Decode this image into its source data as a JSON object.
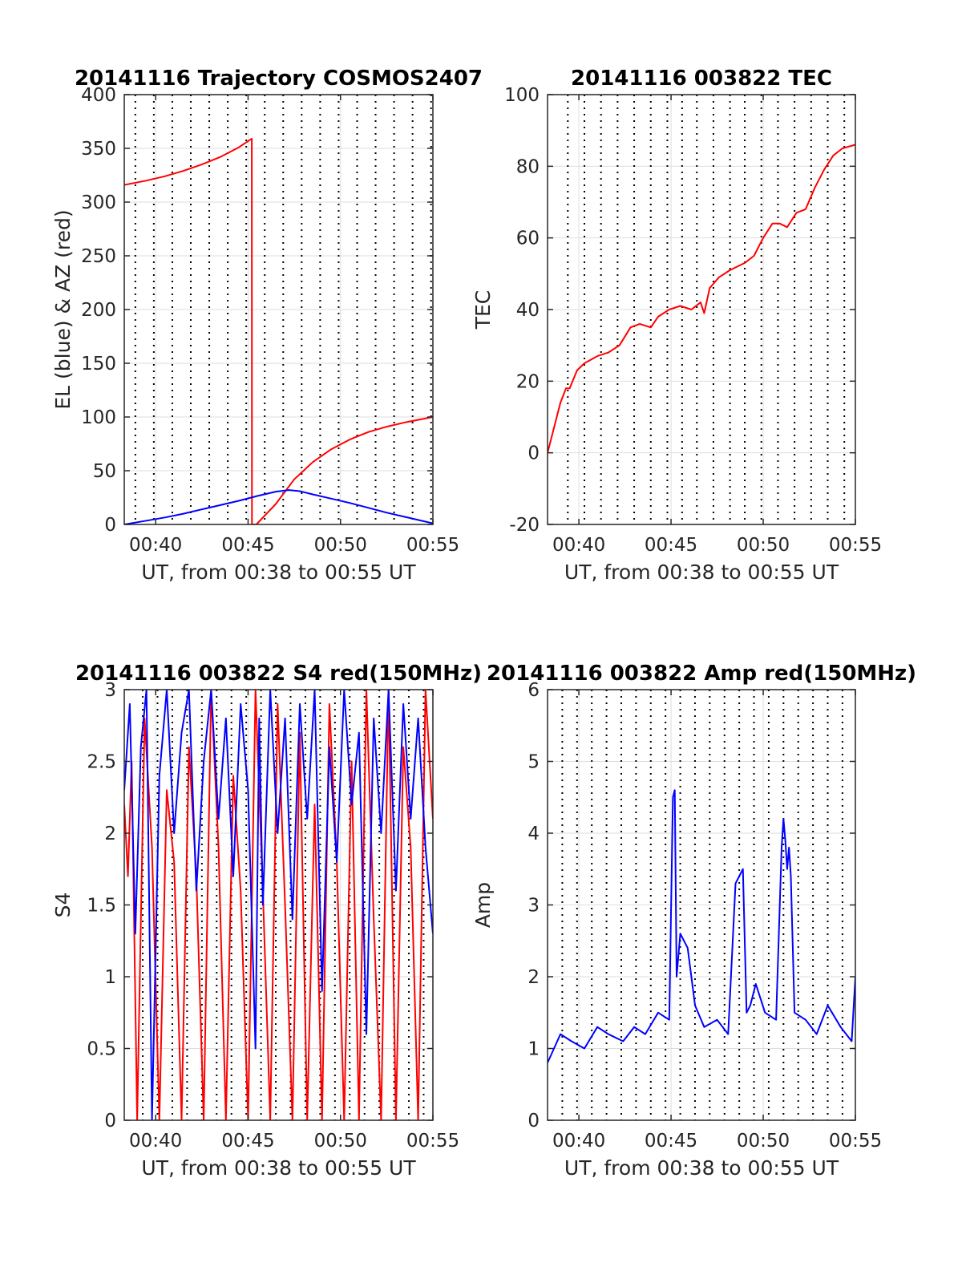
{
  "figure": {
    "background": "#ffffff"
  },
  "chart_data": [
    {
      "id": "trajectory",
      "type": "line",
      "title": "20141116 Trajectory COSMOS2407",
      "xlabel": "UT, from 00:38 to 00:55 UT",
      "ylabel": "EL (blue) & AZ (red)",
      "xlim": [
        38.3,
        55
      ],
      "ylim": [
        0,
        400
      ],
      "yticks": [
        0,
        50,
        100,
        150,
        200,
        250,
        300,
        350,
        400
      ],
      "xticks": [
        40,
        45,
        50,
        55
      ],
      "xtick_labels": [
        "00:40",
        "00:45",
        "00:50",
        "00:55"
      ],
      "dotted_x": [
        38.9,
        39.9,
        40.9,
        41.9,
        42.9,
        43.9,
        44.9,
        45.9,
        46.9,
        47.9,
        48.9,
        49.9,
        50.9,
        51.9,
        52.9,
        53.9,
        54.9
      ],
      "grid": true,
      "series": [
        {
          "name": "AZ",
          "color": "#ff0000",
          "x": [
            38.3,
            39.5,
            40.5,
            41.5,
            42.5,
            43.5,
            44.5,
            45.2,
            45.21,
            45.45,
            45.45,
            46.5,
            47.5,
            48.5,
            49.5,
            50.5,
            51.5,
            52.5,
            53.5,
            55
          ],
          "y": [
            316,
            320,
            324,
            329,
            335,
            342,
            351,
            359,
            0,
            0,
            0,
            19,
            42,
            58,
            70,
            79,
            86,
            91,
            95,
            100
          ]
        },
        {
          "name": "EL",
          "color": "#0000ff",
          "x": [
            38.3,
            39.5,
            40.5,
            41.5,
            42.5,
            43.5,
            44.5,
            45.5,
            46.5,
            47.2,
            47.8,
            48.5,
            49.5,
            50.5,
            51.5,
            52.5,
            53.5,
            55
          ],
          "y": [
            0,
            3.5,
            6.5,
            10,
            14,
            18,
            22,
            26.5,
            30.5,
            32,
            31,
            28,
            24,
            20,
            15.5,
            11,
            7,
            1
          ]
        }
      ]
    },
    {
      "id": "tec",
      "type": "line",
      "title": "20141116 003822 TEC",
      "xlabel": "UT, from 00:38 to 00:55 UT",
      "ylabel": "TEC",
      "xlim": [
        38.3,
        55
      ],
      "ylim": [
        -20,
        100
      ],
      "yticks": [
        -20,
        0,
        20,
        40,
        60,
        80,
        100
      ],
      "xticks": [
        40,
        45,
        50,
        55
      ],
      "xtick_labels": [
        "00:40",
        "00:45",
        "00:50",
        "00:55"
      ],
      "dotted_x": [
        39.4,
        40.3,
        41.2,
        42.1,
        43.0,
        43.9,
        44.8,
        45.6,
        46.4,
        47.3,
        48.2,
        49.0,
        49.9,
        50.8,
        51.7,
        52.6,
        53.5,
        54.4
      ],
      "grid": true,
      "series": [
        {
          "name": "TEC",
          "color": "#ff0000",
          "x": [
            38.3,
            38.6,
            39.0,
            39.3,
            39.5,
            39.9,
            40.3,
            41.0,
            41.6,
            42.2,
            42.8,
            43.3,
            43.9,
            44.3,
            44.9,
            45.5,
            46.1,
            46.6,
            46.8,
            47.1,
            47.6,
            48.2,
            48.6,
            49.0,
            49.5,
            50.0,
            50.5,
            50.9,
            51.3,
            51.8,
            52.3,
            52.8,
            53.3,
            53.8,
            54.3,
            55.0
          ],
          "y": [
            0,
            6,
            14,
            18,
            18,
            23,
            25,
            27,
            28,
            30,
            35,
            36,
            35,
            38,
            40,
            41,
            40,
            42,
            39,
            46,
            49,
            51,
            52,
            53,
            55,
            60,
            64,
            64,
            63,
            67,
            68,
            74,
            79,
            83,
            85,
            86
          ]
        }
      ]
    },
    {
      "id": "s4",
      "type": "line",
      "title": "20141116 003822 S4 red(150MHz)",
      "xlabel": "UT, from 00:38 to 00:55 UT",
      "ylabel": "S4",
      "xlim": [
        38.3,
        55
      ],
      "ylim": [
        0,
        3
      ],
      "yticks": [
        0,
        0.5,
        1,
        1.5,
        2,
        2.5,
        3
      ],
      "xticks": [
        40,
        45,
        50,
        55
      ],
      "xtick_labels": [
        "00:40",
        "00:45",
        "00:50",
        "00:55"
      ],
      "dotted_x": [
        39.3,
        40.1,
        40.9,
        41.7,
        42.5,
        43.3,
        44.1,
        44.9,
        45.7,
        46.5,
        47.3,
        48.1,
        48.9,
        49.7,
        50.5,
        51.3,
        52.1,
        52.9,
        53.7,
        54.5
      ],
      "grid": true,
      "series": [
        {
          "name": "S4 red",
          "color": "#ff0000",
          "x": [
            38.3,
            38.5,
            38.7,
            39.0,
            39.4,
            39.8,
            40.2,
            40.6,
            41.0,
            41.4,
            41.8,
            42.2,
            42.6,
            43.0,
            43.4,
            43.8,
            44.2,
            44.6,
            45.0,
            45.4,
            45.8,
            46.2,
            46.6,
            47.0,
            47.4,
            47.8,
            48.2,
            48.6,
            49.0,
            49.4,
            49.8,
            50.2,
            50.6,
            51.0,
            51.4,
            51.8,
            52.2,
            52.6,
            53.0,
            53.4,
            53.8,
            54.2,
            54.6,
            55.0
          ],
          "y": [
            2.2,
            1.7,
            2.5,
            0,
            2.8,
            1.9,
            0,
            2.3,
            1.8,
            0,
            2.6,
            1.7,
            0,
            3.0,
            1.9,
            0,
            2.4,
            1.6,
            0,
            3.0,
            1.6,
            0,
            2.9,
            1.5,
            0,
            2.7,
            0,
            2.2,
            0,
            2.9,
            1.8,
            0,
            2.5,
            0,
            3.0,
            1.4,
            0,
            3.0,
            0,
            2.6,
            1.9,
            0,
            3.0,
            2.1
          ]
        },
        {
          "name": "S4 blue",
          "color": "#0000ff",
          "x": [
            38.3,
            38.6,
            38.9,
            39.2,
            39.5,
            39.8,
            40.2,
            40.6,
            41.0,
            41.4,
            41.8,
            42.2,
            42.6,
            43.0,
            43.4,
            43.8,
            44.2,
            44.6,
            45.0,
            45.4,
            45.6,
            45.8,
            46.2,
            46.6,
            47.0,
            47.4,
            47.8,
            48.2,
            48.6,
            49.0,
            49.4,
            49.8,
            50.2,
            50.6,
            51.0,
            51.4,
            51.8,
            52.2,
            52.6,
            53.0,
            53.4,
            53.8,
            54.2,
            54.6,
            55.0
          ],
          "y": [
            2.3,
            2.9,
            1.3,
            2.6,
            3.0,
            0,
            2.4,
            3.0,
            2.0,
            2.7,
            3.0,
            1.6,
            2.5,
            3.0,
            2.1,
            2.8,
            1.7,
            2.9,
            2.3,
            0.5,
            2.8,
            1.5,
            3.0,
            2.0,
            2.8,
            1.4,
            2.9,
            2.1,
            3.0,
            0.9,
            2.6,
            1.8,
            3.0,
            2.2,
            2.7,
            0.6,
            2.8,
            2.0,
            3.0,
            1.6,
            2.9,
            2.1,
            2.8,
            1.9,
            1.3
          ]
        }
      ]
    },
    {
      "id": "amp",
      "type": "line",
      "title": "20141116 003822 Amp red(150MHz)",
      "xlabel": "UT, from 00:38 to 00:55 UT",
      "ylabel": "Amp",
      "xlim": [
        38.3,
        55
      ],
      "ylim": [
        0,
        6
      ],
      "yticks": [
        0,
        1,
        2,
        3,
        4,
        5,
        6
      ],
      "xticks": [
        40,
        45,
        50,
        55
      ],
      "xtick_labels": [
        "00:40",
        "00:45",
        "00:50",
        "00:55"
      ],
      "dotted_x": [
        39.1,
        39.9,
        40.7,
        41.5,
        42.3,
        43.1,
        43.9,
        44.7,
        45.5,
        46.3,
        47.1,
        47.9,
        48.7,
        49.5,
        50.3,
        51.1,
        51.9,
        52.7,
        53.5,
        54.3
      ],
      "grid": true,
      "series": [
        {
          "name": "Amp",
          "color": "#0000ff",
          "x": [
            38.3,
            39.0,
            39.6,
            40.3,
            41.0,
            41.6,
            42.4,
            43.0,
            43.6,
            44.3,
            44.9,
            45.1,
            45.2,
            45.3,
            45.5,
            45.9,
            46.3,
            46.8,
            47.5,
            48.1,
            48.5,
            48.7,
            48.9,
            49.1,
            49.3,
            49.6,
            50.1,
            50.7,
            51.0,
            51.1,
            51.2,
            51.3,
            51.4,
            51.5,
            51.7,
            52.3,
            52.9,
            53.5,
            54.2,
            54.8,
            55.0
          ],
          "y": [
            0.8,
            1.2,
            1.1,
            1.0,
            1.3,
            1.2,
            1.1,
            1.3,
            1.2,
            1.5,
            1.4,
            4.5,
            4.6,
            2.0,
            2.6,
            2.4,
            1.6,
            1.3,
            1.4,
            1.2,
            3.3,
            3.4,
            3.5,
            1.5,
            1.6,
            1.9,
            1.5,
            1.4,
            3.8,
            4.2,
            3.9,
            3.5,
            3.8,
            3.4,
            1.5,
            1.4,
            1.2,
            1.6,
            1.3,
            1.1,
            2.0
          ]
        }
      ]
    }
  ]
}
